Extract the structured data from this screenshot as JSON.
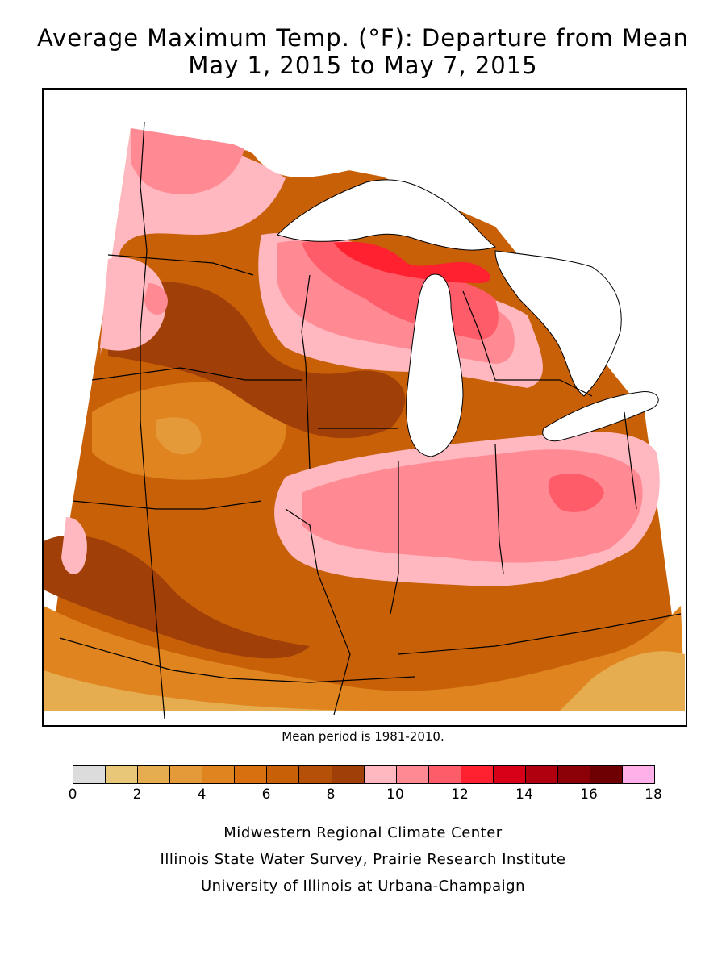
{
  "title": {
    "line1": "Average Maximum Temp. (°F): Departure from Mean",
    "line2": "May 1, 2015 to May 7, 2015"
  },
  "mean_note": "Mean period is 1981-2010.",
  "legend": {
    "colors": [
      "#dcdcdc",
      "#e8c878",
      "#e6ac50",
      "#e49a38",
      "#e08420",
      "#d87010",
      "#c86008",
      "#b45008",
      "#a04008",
      "#ffb8c0",
      "#ff8a94",
      "#ff5c6a",
      "#ff2030",
      "#d80018",
      "#b00010",
      "#8c0008",
      "#6e0004",
      "#ffb0e8"
    ],
    "ticks": [
      "0",
      "2",
      "4",
      "6",
      "8",
      "10",
      "12",
      "14",
      "16",
      "18"
    ]
  },
  "credits": {
    "line1": "Midwestern Regional Climate Center",
    "line2": "Illinois State Water Survey, Prairie Research Institute",
    "line3": "University of Illinois at Urbana-Champaign"
  }
}
